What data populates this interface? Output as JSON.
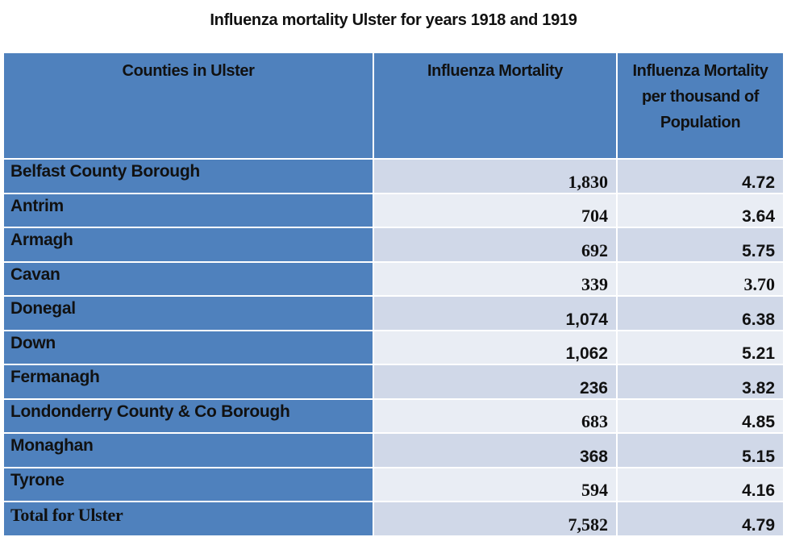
{
  "title": "Influenza mortality Ulster for years 1918 and 1919",
  "table": {
    "headers": [
      "Counties in Ulster",
      "Influenza Mortality",
      "Influenza Mortality per thousand of Population"
    ],
    "rows": [
      {
        "county": "Belfast County Borough",
        "mortality": "1,830",
        "per_thousand": "4.72"
      },
      {
        "county": "Antrim",
        "mortality": "704",
        "per_thousand": "3.64"
      },
      {
        "county": "Armagh",
        "mortality": "692",
        "per_thousand": "5.75"
      },
      {
        "county": "Cavan",
        "mortality": "339",
        "per_thousand": "3.70"
      },
      {
        "county": "Donegal",
        "mortality": "1,074",
        "per_thousand": "6.38"
      },
      {
        "county": "Down",
        "mortality": "1,062",
        "per_thousand": "5.21"
      },
      {
        "county": "Fermanagh",
        "mortality": "236",
        "per_thousand": "3.82"
      },
      {
        "county": "Londonderry County & Co Borough",
        "mortality": "683",
        "per_thousand": "4.85"
      },
      {
        "county": "Monaghan",
        "mortality": "368",
        "per_thousand": "5.15"
      },
      {
        "county": "Tyrone",
        "mortality": "594",
        "per_thousand": "4.16"
      },
      {
        "county": "Total for Ulster",
        "mortality": "7,582",
        "per_thousand": "4.79"
      }
    ]
  },
  "colors": {
    "header": "#4f81bd",
    "row_dark": "#d0d8e8",
    "row_light": "#e9edf4"
  }
}
